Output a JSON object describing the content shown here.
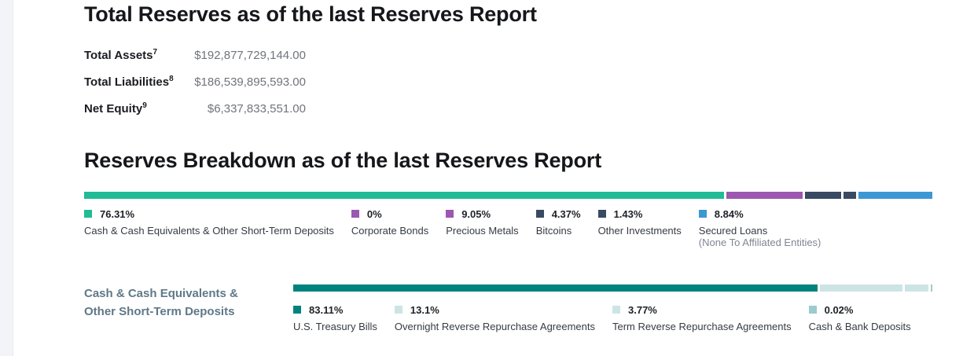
{
  "totals": {
    "heading": "Total Reserves as of the last Reserves Report",
    "rows": [
      {
        "label": "Total Assets",
        "footnote": "7",
        "value": "$192,877,729,144.00"
      },
      {
        "label": "Total Liabilities",
        "footnote": "8",
        "value": "$186,539,895,593.00"
      },
      {
        "label": "Net Equity",
        "footnote": "9",
        "value": "$6,337,833,551.00"
      }
    ]
  },
  "breakdown": {
    "heading": "Reserves Breakdown as of the last Reserves Report"
  },
  "cash_section": {
    "label_line1": "Cash & Cash Equivalents &",
    "label_line2": "Other Short-Term Deposits"
  },
  "colors": {
    "green": "#21bb95",
    "purple": "#9c57b1",
    "navy": "#394a62",
    "blue": "#3d97d4",
    "teal_dark": "#00827f",
    "teal_light": "#cde4e5",
    "teal_medium": "#9bcbce"
  },
  "chart_data": [
    {
      "type": "bar",
      "variant": "stacked-horizontal",
      "title": "Reserves Breakdown as of the last Reserves Report",
      "unit": "%",
      "series": [
        {
          "name": "Cash & Cash Equivalents & Other Short-Term Deposits",
          "value_pct": 76.31,
          "label": "76.31%",
          "color": "#21bb95",
          "note": ""
        },
        {
          "name": "Corporate Bonds",
          "value_pct": 0,
          "label": "0%",
          "color": "#9c57b1",
          "note": ""
        },
        {
          "name": "Precious Metals",
          "value_pct": 9.05,
          "label": "9.05%",
          "color": "#9c57b1",
          "note": ""
        },
        {
          "name": "Bitcoins",
          "value_pct": 4.37,
          "label": "4.37%",
          "color": "#394a62",
          "note": ""
        },
        {
          "name": "Other Investments",
          "value_pct": 1.43,
          "label": "1.43%",
          "color": "#394a62",
          "note": ""
        },
        {
          "name": "Secured Loans",
          "value_pct": 8.84,
          "label": "8.84%",
          "color": "#3d97d4",
          "note": "(None To Affiliated Entities)"
        }
      ]
    },
    {
      "type": "bar",
      "variant": "stacked-horizontal",
      "title": "Cash & Cash Equivalents & Other Short-Term Deposits",
      "unit": "%",
      "series": [
        {
          "name": "U.S. Treasury Bills",
          "value_pct": 83.11,
          "label": "83.11%",
          "color": "#00827f",
          "note": ""
        },
        {
          "name": "Overnight Reverse Repurchase Agreements",
          "value_pct": 13.1,
          "label": "13.1%",
          "color": "#cde4e5",
          "note": ""
        },
        {
          "name": "Term Reverse Repurchase Agreements",
          "value_pct": 3.77,
          "label": "3.77%",
          "color": "#cde4e5",
          "note": ""
        },
        {
          "name": "Cash & Bank Deposits",
          "value_pct": 0.02,
          "label": "0.02%",
          "color": "#9bcbce",
          "note": ""
        }
      ]
    }
  ]
}
